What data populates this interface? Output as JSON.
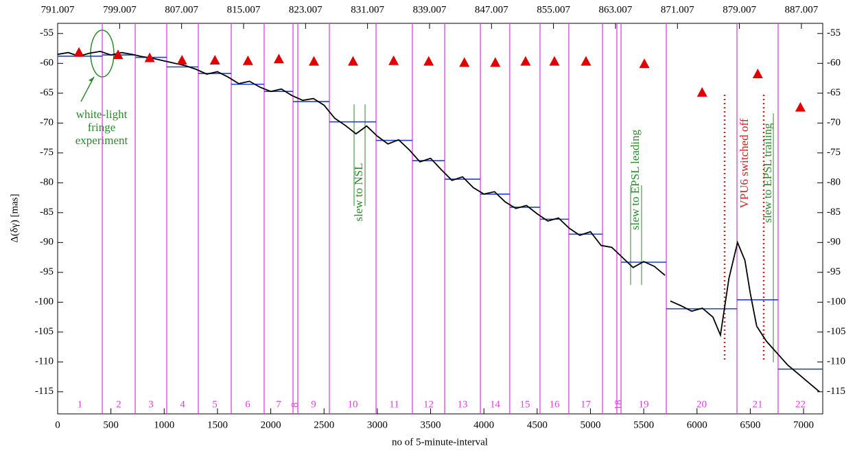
{
  "chart_data": {
    "type": "line",
    "xlabel": "no of 5-minute-interval",
    "ylabel": "Δ(δγ) [mas]",
    "xlim": [
      0,
      7180
    ],
    "xticks": [
      0,
      500,
      1000,
      1500,
      2000,
      2500,
      3000,
      3500,
      4000,
      4500,
      5000,
      5500,
      6000,
      6500,
      7000
    ],
    "x2lim": [
      791.007,
      889.76
    ],
    "x2ticks": [
      791.007,
      799.007,
      807.007,
      815.007,
      823.007,
      831.007,
      839.007,
      847.007,
      855.007,
      863.007,
      871.007,
      879.007,
      887.007
    ],
    "ylim": [
      -118.7,
      -53.3
    ],
    "yticks": [
      -55,
      -60,
      -65,
      -70,
      -75,
      -80,
      -85,
      -90,
      -95,
      -100,
      -105,
      -110,
      -115
    ],
    "trace": {
      "color": "#000000",
      "x": [
        0,
        100,
        200,
        300,
        400,
        500,
        600,
        700,
        800,
        900,
        1000,
        1100,
        1200,
        1300,
        1400,
        1500,
        1600,
        1700,
        1800,
        1900,
        2000,
        2100,
        2200,
        2300,
        2400,
        2500,
        2600,
        2700,
        2800,
        2900,
        3000,
        3100,
        3200,
        3300,
        3400,
        3500,
        3600,
        3700,
        3800,
        3900,
        4000,
        4100,
        4200,
        4300,
        4400,
        4500,
        4600,
        4700,
        4800,
        4900,
        5000,
        5100,
        5200,
        5300,
        5400,
        5500,
        5600,
        5700,
        5720,
        5750,
        5850,
        5950,
        6050,
        6150,
        6220,
        6300,
        6380,
        6450,
        6500,
        6560,
        6650,
        6750,
        6850,
        6950,
        7050,
        7150
      ],
      "values": [
        -58.5,
        -58.2,
        -58.8,
        -58.3,
        -58.0,
        -58.6,
        -58.2,
        -58.5,
        -58.9,
        -59.2,
        -59.6,
        -60.0,
        -60.4,
        -61.0,
        -61.8,
        -61.4,
        -62.3,
        -63.4,
        -63.0,
        -64.0,
        -64.7,
        -64.3,
        -65.4,
        -66.2,
        -65.9,
        -67.0,
        -69.2,
        -70.4,
        -71.8,
        -70.5,
        -72.2,
        -73.5,
        -72.8,
        -74.5,
        -76.5,
        -75.9,
        -77.8,
        -79.6,
        -79.0,
        -80.8,
        -81.9,
        -81.5,
        -83.2,
        -84.3,
        -83.8,
        -85.2,
        -86.4,
        -85.9,
        -87.6,
        -88.8,
        -88.2,
        -90.5,
        -90.8,
        -92.5,
        -94.2,
        -93.2,
        -94.0,
        -95.5,
        null,
        -99.8,
        -100.6,
        -101.5,
        -101.0,
        -102.5,
        -105.5,
        -96.0,
        -90.0,
        -93.0,
        -98.5,
        -104.0,
        -106.5,
        -108.5,
        -110.5,
        -112.0,
        -113.5,
        -115.0
      ]
    },
    "boundaries": {
      "color": "#e040e0",
      "x": [
        419,
        728,
        1024,
        1320,
        1629,
        1938,
        2209,
        2254,
        2550,
        2988,
        3329,
        3632,
        3967,
        4243,
        4527,
        4797,
        5113,
        5248,
        5287,
        5712,
        6375,
        6761
      ]
    },
    "segments": {
      "color": "#1f3fd0",
      "labels": [
        "1",
        "2",
        "3",
        "4",
        "5",
        "6",
        "7",
        "8",
        "9",
        "10",
        "11",
        "12",
        "13",
        "14",
        "15",
        "16",
        "17",
        "18",
        "19",
        "20",
        "21",
        "22"
      ],
      "x0": [
        0,
        419,
        728,
        1024,
        1320,
        1629,
        1938,
        2209,
        2254,
        2550,
        2988,
        3329,
        3632,
        3967,
        4243,
        4527,
        4797,
        5248,
        5287,
        5712,
        6375,
        6761
      ],
      "x1": [
        419,
        728,
        1024,
        1320,
        1629,
        1938,
        2209,
        2254,
        2550,
        2988,
        3329,
        3632,
        3967,
        4243,
        4527,
        4797,
        5113,
        5287,
        5712,
        6375,
        6761,
        7180
      ],
      "means": [
        -58.8,
        -58.6,
        -59.0,
        -60.6,
        -61.7,
        -63.5,
        -64.7,
        -66.4,
        -66.4,
        -69.8,
        -72.9,
        -76.3,
        -79.4,
        -81.9,
        -84.1,
        -86.1,
        -88.6,
        null,
        -93.3,
        -101.1,
        -99.6,
        -111.2
      ]
    },
    "markers": {
      "color": "#e00000",
      "x": [
        200,
        567,
        864,
        1167,
        1476,
        1786,
        2076,
        2405,
        2772,
        3153,
        3482,
        3817,
        4107,
        4391,
        4662,
        4958,
        5506,
        6048,
        6570,
        6970
      ],
      "values": [
        -58.2,
        -58.6,
        -59.1,
        -59.5,
        -59.5,
        -59.6,
        -59.3,
        -59.7,
        -59.7,
        -59.6,
        -59.7,
        -59.9,
        -59.9,
        -59.7,
        -59.7,
        -59.7,
        -60.1,
        -64.9,
        -61.8,
        -67.4
      ]
    },
    "annotations": {
      "fringe": [
        "white-light",
        "fringe",
        "experiment"
      ],
      "nsl": "slew to NSL",
      "epsl_leading": "slew to EPSL leading",
      "epsl_trailing": "slew to EPSL trailing",
      "vpu6": "VPU6 switched off"
    }
  }
}
